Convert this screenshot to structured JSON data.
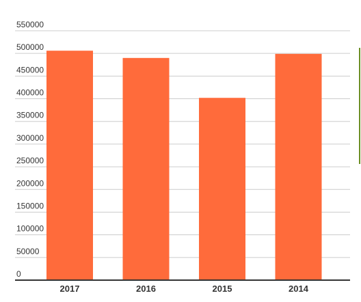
{
  "chart_data": {
    "type": "bar",
    "title": "",
    "xlabel": "",
    "ylabel": "",
    "categories": [
      "2017",
      "2016",
      "2015",
      "2014"
    ],
    "values": [
      506000,
      490000,
      402000,
      499000
    ],
    "yticks": [
      "0",
      "50000",
      "100000",
      "150000",
      "200000",
      "250000",
      "300000",
      "350000",
      "400000",
      "450000",
      "500000",
      "550000"
    ],
    "ylim": [
      0,
      550000
    ],
    "grid": true,
    "legend": "none",
    "bar_color": "#ff6b3b"
  }
}
